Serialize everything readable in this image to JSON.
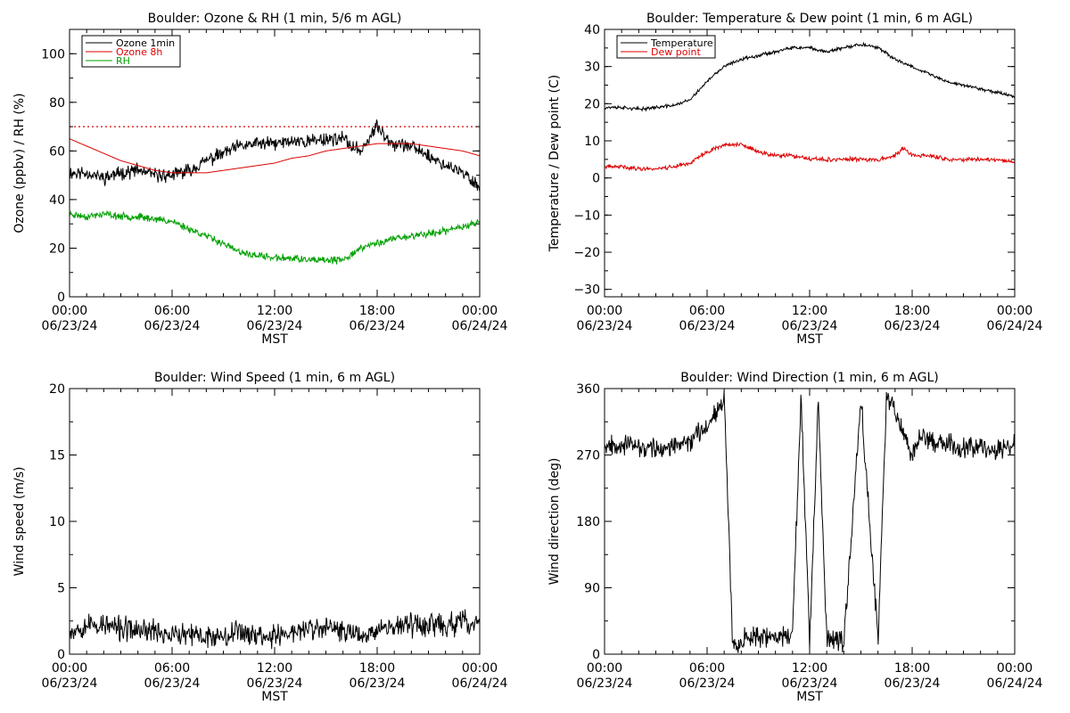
{
  "colors": {
    "ozone_1min": "#000000",
    "ozone_8h": "#dd0000",
    "rh": "#00a000",
    "temperature": "#000000",
    "dew_point": "#dd0000",
    "wind_speed": "#000000",
    "wind_direction": "#000000",
    "threshold_line": "#dd0000"
  },
  "chart_data": [
    {
      "id": "ozone-rh",
      "type": "line",
      "title": "Boulder: Ozone & RH (1 min, 5/6 m AGL)",
      "xlabel": "MST",
      "ylabel": "Ozone (ppbv) / RH (%)",
      "xlim": [
        0,
        24
      ],
      "ylim": [
        0,
        110
      ],
      "xticks": [
        0,
        6,
        12,
        18,
        24
      ],
      "xtick_labels": [
        [
          "00:00",
          "06/23/24"
        ],
        [
          "06:00",
          "06/23/24"
        ],
        [
          "12:00",
          "06/23/24"
        ],
        [
          "18:00",
          "06/23/24"
        ],
        [
          "00:00",
          "06/24/24"
        ]
      ],
      "yticks": [
        0,
        20,
        40,
        60,
        80,
        100
      ],
      "ytick_labels": [
        "0",
        "20",
        "40",
        "60",
        "80",
        "100"
      ],
      "reference_lines": [
        {
          "y": 70,
          "style": "dotted",
          "color": "#dd0000"
        }
      ],
      "legend": {
        "placement": "top-left",
        "entries": [
          "Ozone 1min",
          "Ozone 8h",
          "RH"
        ]
      },
      "series": [
        {
          "name": "Ozone 1min",
          "color": "#000000",
          "noise": 2.5,
          "seed": 11,
          "x": [
            0,
            1,
            2,
            3,
            4,
            5,
            6,
            7,
            8,
            9,
            10,
            11,
            12,
            13,
            14,
            15,
            16,
            16.5,
            17,
            17.5,
            18,
            18.5,
            19,
            20,
            21,
            22,
            23,
            23.5,
            24
          ],
          "y": [
            51,
            51,
            49,
            51,
            52,
            50,
            50,
            52,
            56,
            59,
            62,
            63,
            63,
            64,
            64,
            65,
            65,
            62,
            60,
            65,
            70,
            66,
            63,
            62,
            58,
            54,
            51,
            48,
            45
          ]
        },
        {
          "name": "Ozone 8h",
          "color": "#dd0000",
          "noise": 0,
          "seed": 0,
          "x": [
            0,
            1,
            2,
            3,
            4,
            5,
            6,
            7,
            8,
            9,
            10,
            11,
            12,
            13,
            14,
            15,
            16,
            17,
            18,
            19,
            20,
            21,
            22,
            23,
            24
          ],
          "y": [
            65,
            62,
            59,
            56,
            54,
            52,
            51,
            51,
            51,
            52,
            53,
            54,
            55,
            57,
            58,
            60,
            61,
            62,
            63,
            63,
            63,
            62,
            61,
            60,
            58
          ]
        },
        {
          "name": "RH",
          "color": "#00a000",
          "noise": 1.3,
          "seed": 23,
          "x": [
            0,
            1,
            2,
            3,
            4,
            5,
            6,
            7,
            8,
            9,
            10,
            11,
            12,
            13,
            14,
            15,
            16,
            17,
            18,
            19,
            20,
            21,
            22,
            23,
            24
          ],
          "y": [
            34,
            33,
            34,
            33,
            33,
            32,
            31,
            28,
            25,
            22,
            18,
            17,
            16,
            16,
            15,
            15,
            15,
            20,
            22,
            24,
            25,
            26,
            27,
            29,
            31
          ]
        }
      ]
    },
    {
      "id": "temperature-dewpoint",
      "type": "line",
      "title": "Boulder: Temperature & Dew point (1 min, 6 m AGL)",
      "xlabel": "MST",
      "ylabel": "Temperature / Dew point (C)",
      "xlim": [
        0,
        24
      ],
      "ylim": [
        -32,
        40
      ],
      "xticks": [
        0,
        6,
        12,
        18,
        24
      ],
      "xtick_labels": [
        [
          "00:00",
          "06/23/24"
        ],
        [
          "06:00",
          "06/23/24"
        ],
        [
          "12:00",
          "06/23/24"
        ],
        [
          "18:00",
          "06/23/24"
        ],
        [
          "00:00",
          "06/24/24"
        ]
      ],
      "yticks": [
        -30,
        -20,
        -10,
        0,
        10,
        20,
        30,
        40
      ],
      "ytick_labels": [
        "−30",
        "−20",
        "−10",
        "0",
        "10",
        "20",
        "30",
        "40"
      ],
      "reference_lines": [],
      "legend": {
        "placement": "top-left",
        "entries": [
          "Temperature",
          "Dew point"
        ]
      },
      "series": [
        {
          "name": "Temperature",
          "color": "#000000",
          "noise": 0.4,
          "seed": 37,
          "x": [
            0,
            1,
            2,
            3,
            4,
            5,
            6,
            7,
            8,
            9,
            10,
            11,
            12,
            13,
            14,
            15,
            16,
            17,
            18,
            19,
            20,
            21,
            22,
            23,
            24
          ],
          "y": [
            19,
            19,
            18.5,
            19,
            19.5,
            21,
            26,
            30,
            32,
            33,
            34,
            35,
            35,
            34,
            35,
            36,
            35,
            32,
            30,
            28,
            26,
            25,
            24,
            23,
            22
          ]
        },
        {
          "name": "Dew point",
          "color": "#dd0000",
          "noise": 0.5,
          "seed": 41,
          "x": [
            0,
            1,
            2,
            3,
            4,
            5,
            6,
            7,
            8,
            9,
            10,
            11,
            12,
            13,
            14,
            15,
            16,
            17,
            17.5,
            18,
            19,
            20,
            21,
            22,
            23,
            24
          ],
          "y": [
            3,
            3,
            2.5,
            2.5,
            3,
            4,
            7,
            9,
            9,
            7,
            6,
            6,
            5,
            5,
            5,
            5,
            5,
            6,
            8,
            6,
            6,
            5,
            5,
            5,
            5,
            4
          ]
        }
      ]
    },
    {
      "id": "wind-speed",
      "type": "line",
      "title": "Boulder: Wind Speed (1 min, 6 m AGL)",
      "xlabel": "MST",
      "ylabel": "Wind speed (m/s)",
      "xlim": [
        0,
        24
      ],
      "ylim": [
        0,
        20
      ],
      "xticks": [
        0,
        6,
        12,
        18,
        24
      ],
      "xtick_labels": [
        [
          "00:00",
          "06/23/24"
        ],
        [
          "06:00",
          "06/23/24"
        ],
        [
          "12:00",
          "06/23/24"
        ],
        [
          "18:00",
          "06/23/24"
        ],
        [
          "00:00",
          "06/24/24"
        ]
      ],
      "yticks": [
        0,
        5,
        10,
        15,
        20
      ],
      "ytick_labels": [
        "0",
        "5",
        "10",
        "15",
        "20"
      ],
      "reference_lines": [],
      "legend": null,
      "series": [
        {
          "name": "",
          "color": "#000000",
          "noise": 0.8,
          "seed": 53,
          "min": 0,
          "x": [
            0,
            1,
            2,
            3,
            4,
            5,
            6,
            7,
            8,
            9,
            10,
            11,
            12,
            13,
            14,
            15,
            16,
            17,
            18,
            19,
            20,
            21,
            22,
            23,
            24
          ],
          "y": [
            1.8,
            2.2,
            2.2,
            1.9,
            1.8,
            1.8,
            1.4,
            1.4,
            1.3,
            1.5,
            1.8,
            1.4,
            1.4,
            1.6,
            1.9,
            1.9,
            1.8,
            1.5,
            1.9,
            2.1,
            2.2,
            2.3,
            2.1,
            2.4,
            2.3
          ]
        }
      ]
    },
    {
      "id": "wind-direction",
      "type": "line",
      "title": "Boulder: Wind Direction (1 min, 6 m AGL)",
      "xlabel": "MST",
      "ylabel": "Wind direction (deg)",
      "xlim": [
        0,
        24
      ],
      "ylim": [
        0,
        360
      ],
      "xticks": [
        0,
        6,
        12,
        18,
        24
      ],
      "xtick_labels": [
        [
          "00:00",
          "06/23/24"
        ],
        [
          "06:00",
          "06/23/24"
        ],
        [
          "12:00",
          "06/23/24"
        ],
        [
          "18:00",
          "06/23/24"
        ],
        [
          "00:00",
          "06/24/24"
        ]
      ],
      "yticks": [
        0,
        90,
        180,
        270,
        360
      ],
      "ytick_labels": [
        "0",
        "90",
        "180",
        "270",
        "360"
      ],
      "reference_lines": [],
      "legend": null,
      "series": [
        {
          "name": "",
          "color": "#000000",
          "noise": 12,
          "seed": 67,
          "wrap": true,
          "min": 0,
          "max": 360,
          "x": [
            0,
            1,
            2,
            3,
            4,
            5,
            5.5,
            6,
            6.5,
            7,
            7.5,
            8,
            9,
            10,
            11,
            11.5,
            12,
            12.5,
            13,
            14,
            15,
            16,
            16.5,
            17,
            17.5,
            18,
            18.5,
            19,
            20,
            21,
            22,
            23,
            24
          ],
          "y": [
            285,
            285,
            280,
            278,
            280,
            290,
            300,
            310,
            330,
            350,
            10,
            20,
            25,
            20,
            30,
            350,
            10,
            340,
            20,
            15,
            350,
            20,
            350,
            330,
            300,
            270,
            300,
            290,
            285,
            280,
            285,
            275,
            285
          ]
        }
      ]
    }
  ]
}
